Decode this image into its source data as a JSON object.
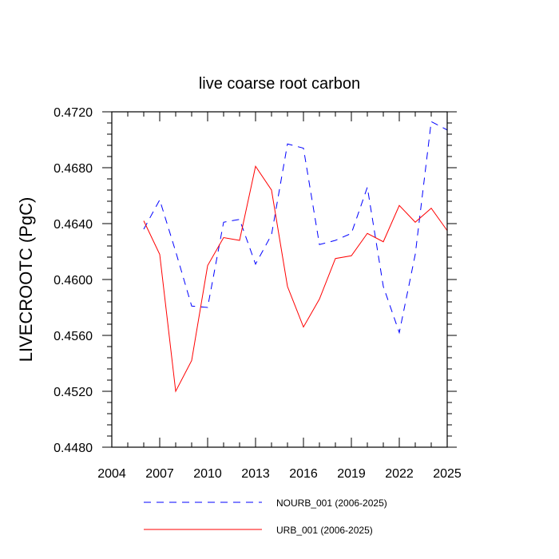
{
  "chart_data": {
    "type": "line",
    "title": "live coarse root carbon",
    "xlabel": "",
    "ylabel": "LIVECROOTC  (PgC)",
    "xlim": [
      2004,
      2025
    ],
    "ylim": [
      0.448,
      0.472
    ],
    "x_ticks": [
      2004,
      2007,
      2010,
      2013,
      2016,
      2019,
      2022,
      2025
    ],
    "x_tick_labels": [
      "2004",
      "2007",
      "2010",
      "2013",
      "2016",
      "2019",
      "2022",
      "2025"
    ],
    "y_ticks": [
      0.448,
      0.452,
      0.456,
      0.46,
      0.464,
      0.468,
      0.472
    ],
    "y_tick_labels": [
      "0.4480",
      "0.4520",
      "0.4560",
      "0.4600",
      "0.4640",
      "0.4680",
      "0.4720"
    ],
    "x": [
      2006,
      2007,
      2008,
      2009,
      2010,
      2011,
      2012,
      2013,
      2014,
      2015,
      2016,
      2017,
      2018,
      2019,
      2020,
      2021,
      2022,
      2023,
      2024,
      2025
    ],
    "series": [
      {
        "name": "NOURB_001 (2006-2025)",
        "color": "#0000ff",
        "dash": "dashed",
        "values": [
          0.4636,
          0.4657,
          0.462,
          0.4581,
          0.458,
          0.4641,
          0.4643,
          0.4611,
          0.4632,
          0.4697,
          0.4694,
          0.4625,
          0.4628,
          0.4633,
          0.4666,
          0.4595,
          0.4562,
          0.4618,
          0.4713,
          0.4707
        ]
      },
      {
        "name": "URB_001 (2006-2025)",
        "color": "#ff0000",
        "dash": "solid",
        "values": [
          0.4642,
          0.4618,
          0.452,
          0.4542,
          0.461,
          0.463,
          0.4628,
          0.4681,
          0.4664,
          0.4595,
          0.4566,
          0.4586,
          0.4615,
          0.4617,
          0.4633,
          0.4627,
          0.4653,
          0.4641,
          0.4651,
          0.4635
        ]
      }
    ],
    "legend_position": "bottom"
  }
}
